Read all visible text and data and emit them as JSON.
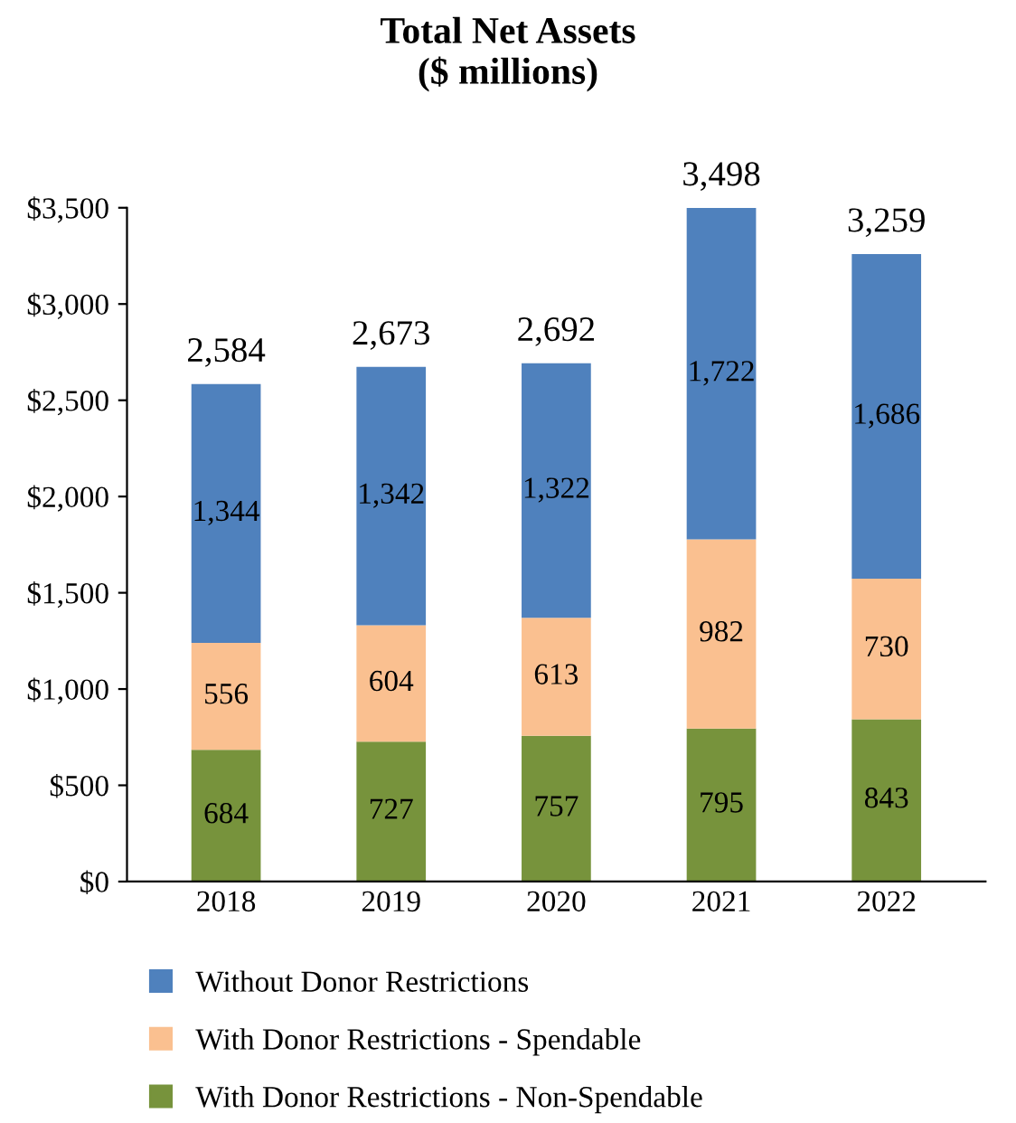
{
  "chart_data": {
    "type": "bar",
    "title": "Total Net Assets\n($ millions)",
    "stacked": true,
    "categories": [
      "2018",
      "2019",
      "2020",
      "2021",
      "2022"
    ],
    "series": [
      {
        "name": "With Donor Restrictions - Non-Spendable",
        "color": "#77933c",
        "values": [
          684,
          727,
          757,
          795,
          843
        ],
        "value_labels": [
          "684",
          "727",
          "757",
          "795",
          "843"
        ]
      },
      {
        "name": "With Donor Restrictions - Spendable",
        "color": "#fac090",
        "values": [
          556,
          604,
          613,
          982,
          730
        ],
        "value_labels": [
          "556",
          "604",
          "613",
          "982",
          "730"
        ]
      },
      {
        "name": "Without Donor Restrictions",
        "color": "#4f81bd",
        "values": [
          1344,
          1342,
          1322,
          1722,
          1686
        ],
        "value_labels": [
          "1,344",
          "1,342",
          "1,322",
          "1,722",
          "1,686"
        ]
      }
    ],
    "totals": [
      "2,584",
      "2,673",
      "2,692",
      "3,498",
      "3,259"
    ],
    "ylim": [
      0,
      3500
    ],
    "yticks": [
      {
        "value": 0,
        "label": "$0"
      },
      {
        "value": 500,
        "label": "$500"
      },
      {
        "value": 1000,
        "label": "$1,000"
      },
      {
        "value": 1500,
        "label": "$1,500"
      },
      {
        "value": 2000,
        "label": "$2,000"
      },
      {
        "value": 2500,
        "label": "$2,500"
      },
      {
        "value": 3000,
        "label": "$3,000"
      },
      {
        "value": 3500,
        "label": "$3,500"
      }
    ],
    "grid": false,
    "legend": "bottom"
  }
}
